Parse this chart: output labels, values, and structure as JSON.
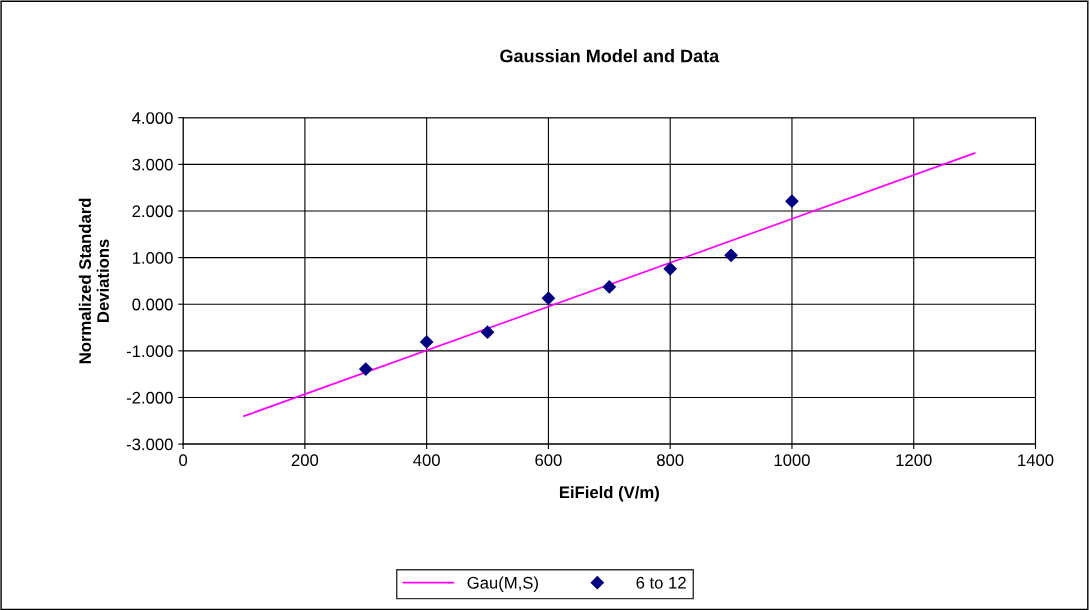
{
  "chart_data": {
    "type": "scatter",
    "title": "Gaussian Model and Data",
    "xlabel": "EiField (V/m)",
    "ylabel": "Normalized Standard\nDeviations",
    "series": [
      {
        "name": "Gau(M,S)",
        "type": "line",
        "color": "#ff00ff",
        "x": [
          100,
          1300
        ],
        "values": [
          -2.4,
          3.24
        ],
        "marker": "none"
      },
      {
        "name": "6 to 12",
        "color": "#000080",
        "x": [
          300,
          400,
          500,
          600,
          700,
          800,
          900,
          1000
        ],
        "values": [
          -1.39,
          -0.81,
          -0.6,
          0.13,
          0.37,
          0.76,
          1.05,
          2.21
        ],
        "marker": "diamond"
      }
    ],
    "xlim": [
      0,
      1400
    ],
    "xticks": [
      0,
      200,
      400,
      600,
      800,
      1000,
      1200,
      1400
    ],
    "ylim": [
      -3,
      4
    ],
    "yticks": [
      {
        "value": -3,
        "label": "-3.000"
      },
      {
        "value": -2,
        "label": "-2.000"
      },
      {
        "value": -1,
        "label": "-1.000"
      },
      {
        "value": 0,
        "label": "0.000"
      },
      {
        "value": 1,
        "label": "1.000"
      },
      {
        "value": 2,
        "label": "2.000"
      },
      {
        "value": 3,
        "label": "3.000"
      },
      {
        "value": 4,
        "label": "4.000"
      }
    ],
    "grid": true,
    "legend": "bottom"
  }
}
